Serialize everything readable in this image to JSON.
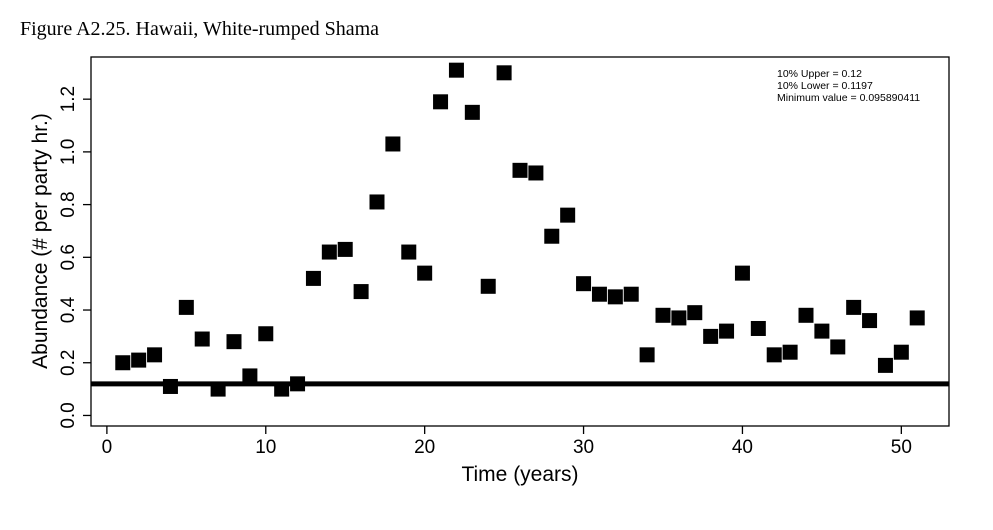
{
  "figure_title": "Figure A2.25. Hawaii, White-rumped Shama",
  "chart_data": {
    "type": "scatter",
    "xlabel": "Time (years)",
    "ylabel": "Abundance (# per party hr.)",
    "xlim": [
      -1,
      53
    ],
    "ylim": [
      -0.04,
      1.36
    ],
    "x_ticks": [
      0,
      10,
      20,
      30,
      40,
      50
    ],
    "y_ticks": [
      0.0,
      0.2,
      0.4,
      0.6,
      0.8,
      1.0,
      1.2
    ],
    "y_tick_labels": [
      "0.0",
      "0.2",
      "0.4",
      "0.6",
      "0.8",
      "1.0",
      "1.2"
    ],
    "x_tick_labels": [
      "0",
      "10",
      "20",
      "30",
      "40",
      "50"
    ],
    "points": [
      {
        "x": 1,
        "y": 0.2
      },
      {
        "x": 2,
        "y": 0.21
      },
      {
        "x": 3,
        "y": 0.23
      },
      {
        "x": 4,
        "y": 0.11
      },
      {
        "x": 5,
        "y": 0.41
      },
      {
        "x": 6,
        "y": 0.29
      },
      {
        "x": 7,
        "y": 0.1
      },
      {
        "x": 8,
        "y": 0.28
      },
      {
        "x": 9,
        "y": 0.15
      },
      {
        "x": 10,
        "y": 0.31
      },
      {
        "x": 11,
        "y": 0.1
      },
      {
        "x": 12,
        "y": 0.12
      },
      {
        "x": 13,
        "y": 0.52
      },
      {
        "x": 14,
        "y": 0.62
      },
      {
        "x": 15,
        "y": 0.63
      },
      {
        "x": 16,
        "y": 0.47
      },
      {
        "x": 17,
        "y": 0.81
      },
      {
        "x": 18,
        "y": 1.03
      },
      {
        "x": 19,
        "y": 0.62
      },
      {
        "x": 20,
        "y": 0.54
      },
      {
        "x": 21,
        "y": 1.19
      },
      {
        "x": 22,
        "y": 1.31
      },
      {
        "x": 23,
        "y": 1.15
      },
      {
        "x": 24,
        "y": 0.49
      },
      {
        "x": 25,
        "y": 1.3
      },
      {
        "x": 26,
        "y": 0.93
      },
      {
        "x": 27,
        "y": 0.92
      },
      {
        "x": 28,
        "y": 0.68
      },
      {
        "x": 29,
        "y": 0.76
      },
      {
        "x": 30,
        "y": 0.5
      },
      {
        "x": 31,
        "y": 0.46
      },
      {
        "x": 32,
        "y": 0.45
      },
      {
        "x": 33,
        "y": 0.46
      },
      {
        "x": 34,
        "y": 0.23
      },
      {
        "x": 35,
        "y": 0.38
      },
      {
        "x": 36,
        "y": 0.37
      },
      {
        "x": 37,
        "y": 0.39
      },
      {
        "x": 38,
        "y": 0.3
      },
      {
        "x": 39,
        "y": 0.32
      },
      {
        "x": 40,
        "y": 0.54
      },
      {
        "x": 41,
        "y": 0.33
      },
      {
        "x": 42,
        "y": 0.23
      },
      {
        "x": 43,
        "y": 0.24
      },
      {
        "x": 44,
        "y": 0.38
      },
      {
        "x": 45,
        "y": 0.32
      },
      {
        "x": 46,
        "y": 0.26
      },
      {
        "x": 47,
        "y": 0.41
      },
      {
        "x": 48,
        "y": 0.36
      },
      {
        "x": 49,
        "y": 0.19
      },
      {
        "x": 50,
        "y": 0.24
      },
      {
        "x": 51,
        "y": 0.37
      }
    ],
    "reference_line": {
      "y": 0.12
    },
    "legend": {
      "placement": "top-right",
      "lines": [
        "10% Upper =  0.12",
        "10% Lower =  0.1197",
        "Minimum value =  0.095890411"
      ]
    },
    "colors": {
      "marker": "#000000",
      "line": "#000000"
    },
    "marker": "square",
    "grid": false
  }
}
